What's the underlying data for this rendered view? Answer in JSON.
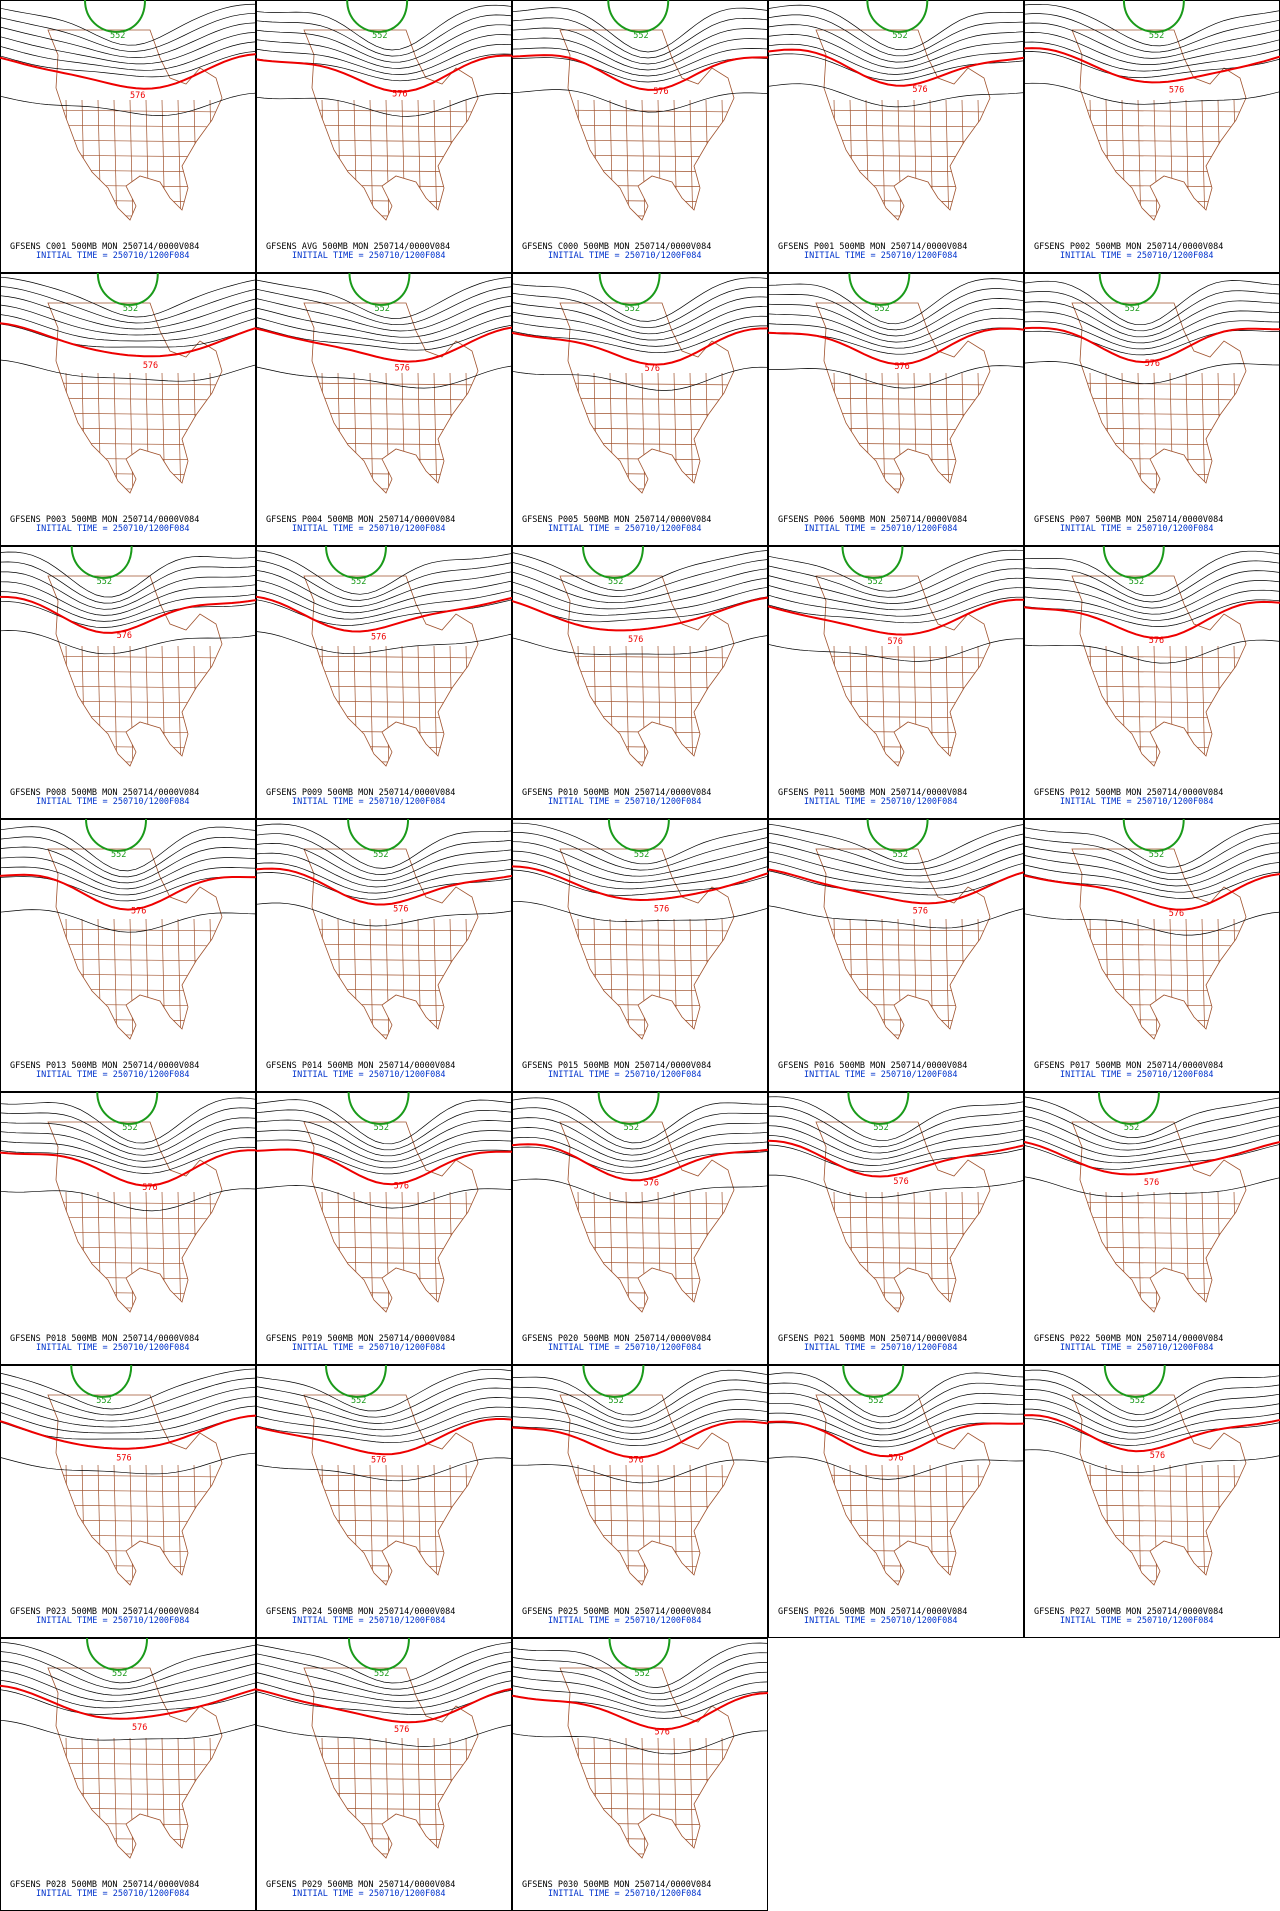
{
  "panels": [
    {
      "title": "GFSENS C001 500MB MON 250714/0000V084",
      "initial_time": "INITIAL TIME = 250710/1200F084",
      "labels": [
        "552",
        "576"
      ]
    },
    {
      "title": "GFSENS AVG 500MB MON 250714/0000V084",
      "initial_time": "INITIAL TIME = 250710/1200F084",
      "labels": [
        "552",
        "576"
      ]
    },
    {
      "title": "GFSENS C000 500MB MON 250714/0000V084",
      "initial_time": "INITIAL TIME = 250710/1200F084",
      "labels": [
        "552",
        "576"
      ]
    },
    {
      "title": "GFSENS P001 500MB MON 250714/0000V084",
      "initial_time": "INITIAL TIME = 250710/1200F084",
      "labels": [
        "552",
        "576"
      ]
    },
    {
      "title": "GFSENS P002 500MB MON 250714/0000V084",
      "initial_time": "INITIAL TIME = 250710/1200F084",
      "labels": [
        "552",
        "576"
      ]
    },
    {
      "title": "GFSENS P003 500MB MON 250714/0000V084",
      "initial_time": "INITIAL TIME = 250710/1200F084",
      "labels": [
        "552",
        "576"
      ]
    },
    {
      "title": "GFSENS P004 500MB MON 250714/0000V084",
      "initial_time": "INITIAL TIME = 250710/1200F084",
      "labels": [
        "552",
        "576"
      ]
    },
    {
      "title": "GFSENS P005 500MB MON 250714/0000V084",
      "initial_time": "INITIAL TIME = 250710/1200F084",
      "labels": [
        "552",
        "576"
      ]
    },
    {
      "title": "GFSENS P006 500MB MON 250714/0000V084",
      "initial_time": "INITIAL TIME = 250710/1200F084",
      "labels": [
        "552",
        "576"
      ]
    },
    {
      "title": "GFSENS P007 500MB MON 250714/0000V084",
      "initial_time": "INITIAL TIME = 250710/1200F084",
      "labels": [
        "552",
        "576"
      ]
    },
    {
      "title": "GFSENS P008 500MB MON 250714/0000V084",
      "initial_time": "INITIAL TIME = 250710/1200F084",
      "labels": [
        "552",
        "576"
      ]
    },
    {
      "title": "GFSENS P009 500MB MON 250714/0000V084",
      "initial_time": "INITIAL TIME = 250710/1200F084",
      "labels": [
        "552",
        "576"
      ]
    },
    {
      "title": "GFSENS P010 500MB MON 250714/0000V084",
      "initial_time": "INITIAL TIME = 250710/1200F084",
      "labels": [
        "552",
        "576"
      ]
    },
    {
      "title": "GFSENS P011 500MB MON 250714/0000V084",
      "initial_time": "INITIAL TIME = 250710/1200F084",
      "labels": [
        "552",
        "576"
      ]
    },
    {
      "title": "GFSENS P012 500MB MON 250714/0000V084",
      "initial_time": "INITIAL TIME = 250710/1200F084",
      "labels": [
        "552",
        "576"
      ]
    },
    {
      "title": "GFSENS P013 500MB MON 250714/0000V084",
      "initial_time": "INITIAL TIME = 250710/1200F084",
      "labels": [
        "552",
        "576"
      ]
    },
    {
      "title": "GFSENS P014 500MB MON 250714/0000V084",
      "initial_time": "INITIAL TIME = 250710/1200F084",
      "labels": [
        "552",
        "576"
      ]
    },
    {
      "title": "GFSENS P015 500MB MON 250714/0000V084",
      "initial_time": "INITIAL TIME = 250710/1200F084",
      "labels": [
        "552",
        "576"
      ]
    },
    {
      "title": "GFSENS P016 500MB MON 250714/0000V084",
      "initial_time": "INITIAL TIME = 250710/1200F084",
      "labels": [
        "552",
        "576"
      ]
    },
    {
      "title": "GFSENS P017 500MB MON 250714/0000V084",
      "initial_time": "INITIAL TIME = 250710/1200F084",
      "labels": [
        "552",
        "576"
      ]
    },
    {
      "title": "GFSENS P018 500MB MON 250714/0000V084",
      "initial_time": "INITIAL TIME = 250710/1200F084",
      "labels": [
        "552",
        "576"
      ]
    },
    {
      "title": "GFSENS P019 500MB MON 250714/0000V084",
      "initial_time": "INITIAL TIME = 250710/1200F084",
      "labels": [
        "552",
        "576"
      ]
    },
    {
      "title": "GFSENS P020 500MB MON 250714/0000V084",
      "initial_time": "INITIAL TIME = 250710/1200F084",
      "labels": [
        "552",
        "576"
      ]
    },
    {
      "title": "GFSENS P021 500MB MON 250714/0000V084",
      "initial_time": "INITIAL TIME = 250710/1200F084",
      "labels": [
        "552",
        "576"
      ]
    },
    {
      "title": "GFSENS P022 500MB MON 250714/0000V084",
      "initial_time": "INITIAL TIME = 250710/1200F084",
      "labels": [
        "552",
        "576"
      ]
    },
    {
      "title": "GFSENS P023 500MB MON 250714/0000V084",
      "initial_time": "INITIAL TIME = 250710/1200F084",
      "labels": [
        "552",
        "576"
      ]
    },
    {
      "title": "GFSENS P024 500MB MON 250714/0000V084",
      "initial_time": "INITIAL TIME = 250710/1200F084",
      "labels": [
        "552",
        "576"
      ]
    },
    {
      "title": "GFSENS P025 500MB MON 250714/0000V084",
      "initial_time": "INITIAL TIME = 250710/1200F084",
      "labels": [
        "552",
        "576"
      ]
    },
    {
      "title": "GFSENS P026 500MB MON 250714/0000V084",
      "initial_time": "INITIAL TIME = 250710/1200F084",
      "labels": [
        "552",
        "576"
      ]
    },
    {
      "title": "GFSENS P027 500MB MON 250714/0000V084",
      "initial_time": "INITIAL TIME = 250710/1200F084",
      "labels": [
        "552",
        "576"
      ]
    },
    {
      "title": "GFSENS P028 500MB MON 250714/0000V084",
      "initial_time": "INITIAL TIME = 250710/1200F084",
      "labels": [
        "552",
        "576"
      ]
    },
    {
      "title": "GFSENS P029 500MB MON 250714/0000V084",
      "initial_time": "INITIAL TIME = 250710/1200F084",
      "labels": [
        "552",
        "576"
      ]
    },
    {
      "title": "GFSENS P030 500MB MON 250714/0000V084",
      "initial_time": "INITIAL TIME = 250710/1200F084",
      "labels": [
        "552",
        "576"
      ]
    }
  ]
}
